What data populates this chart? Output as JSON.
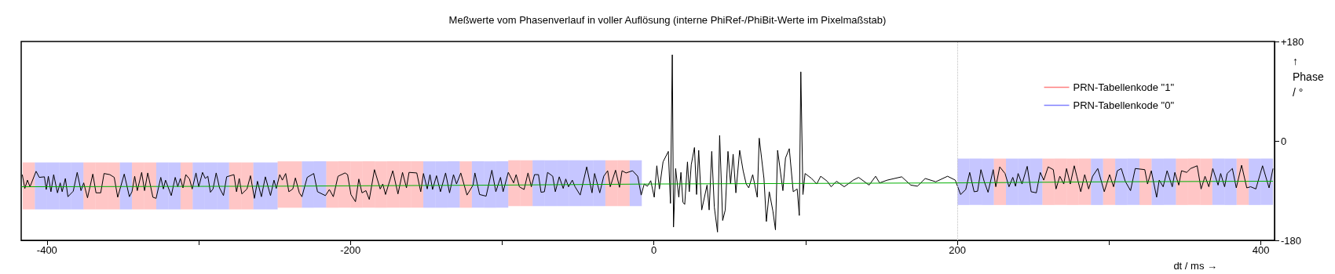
{
  "chart_data": {
    "type": "line",
    "title": "Meßwerte vom Phasenverlauf in voller Auflösung (interne PhiRef-/PhiBit-Werte im Pixelmaßstab)",
    "xlabel": "dt / ms →",
    "ylabel": "↑ Phase / °",
    "xlim": [
      -417,
      409
    ],
    "ylim": [
      -180,
      180
    ],
    "xticks": [
      -400,
      {
        "value": -300,
        "label": null
      },
      -200,
      {
        "value": -100,
        "label": null
      },
      0,
      {
        "value": 100,
        "label": null
      },
      200,
      {
        "value": 300,
        "label": null
      },
      400
    ],
    "yticks": [
      {
        "value": 180,
        "label": "+180"
      },
      0,
      -180
    ],
    "grid": false,
    "legend": "right",
    "marker": "none",
    "line_style": "solid",
    "ref_lines": [
      {
        "axis": "x",
        "value": 200,
        "label": null,
        "color": "#c0c0c0",
        "line_style": "dotted"
      }
    ],
    "series": [
      {
        "name": "PRN-Tabellenkode \"1\"",
        "type": "bar",
        "color": "#ff8080",
        "x": [
          -412,
          -372,
          -364,
          -356,
          -340,
          -332,
          -308,
          -276,
          -268,
          -244,
          -236,
          -212,
          -204,
          -196,
          -188,
          -180,
          -172,
          -164,
          -156,
          -124,
          -92,
          -84,
          -28,
          -20,
          228,
          260,
          268,
          276,
          284,
          300,
          324,
          348,
          356,
          364,
          388
        ],
        "base": [
          -124,
          -124,
          -124,
          -124,
          -124,
          -124,
          -124,
          -124,
          -124,
          -121,
          -121,
          -121,
          -121,
          -121,
          -121,
          -121,
          -121,
          -121,
          -121,
          -121,
          -118,
          -118,
          -118,
          -118,
          -116,
          -116,
          -116,
          -116,
          -116,
          -116,
          -116,
          -116,
          -116,
          -116,
          -116
        ],
        "values": [
          85,
          85,
          85,
          85,
          85,
          85,
          85,
          85,
          85,
          84,
          84,
          84,
          84,
          84,
          84,
          84,
          84,
          84,
          84,
          84,
          83,
          83,
          83,
          83,
          84,
          84,
          84,
          84,
          84,
          84,
          84,
          84,
          84,
          84,
          84
        ]
      },
      {
        "name": "PRN-Tabellenkode \"0\"",
        "type": "bar",
        "color": "#8080ff",
        "x": [
          -404,
          -396,
          -388,
          -380,
          -348,
          -324,
          -316,
          -300,
          -292,
          -284,
          -260,
          -252,
          -228,
          -220,
          -148,
          -140,
          -132,
          -116,
          -108,
          -100,
          -76,
          -68,
          -60,
          -52,
          -44,
          -36,
          -12,
          204,
          212,
          220,
          236,
          244,
          252,
          292,
          308,
          316,
          332,
          340,
          372,
          380,
          396,
          404
        ],
        "base": [
          -124,
          -124,
          -124,
          -124,
          -124,
          -124,
          -124,
          -124,
          -124,
          -124,
          -124,
          -124,
          -121,
          -121,
          -121,
          -121,
          -121,
          -121,
          -121,
          -121,
          -118,
          -118,
          -118,
          -118,
          -118,
          -118,
          -118,
          -116,
          -116,
          -116,
          -116,
          -116,
          -116,
          -116,
          -116,
          -116,
          -116,
          -116,
          -116,
          -116,
          -116,
          -116
        ],
        "values": [
          85,
          85,
          85,
          85,
          85,
          85,
          85,
          85,
          85,
          85,
          85,
          85,
          84,
          84,
          84,
          84,
          84,
          84,
          84,
          84,
          83,
          83,
          83,
          83,
          83,
          83,
          83,
          84,
          84,
          84,
          84,
          84,
          84,
          84,
          84,
          84,
          84,
          84,
          84,
          84,
          84,
          84
        ]
      },
      {
        "color": "#000000",
        "x": [
          -416.3,
          -414.6,
          -412.9,
          -411.2,
          -407.2,
          -405.1,
          -401.7,
          -400.5,
          -399.1,
          -397.4,
          -395.6,
          -393.1,
          -391.3,
          -390.0,
          -387.9,
          -386.2,
          -382.7,
          -380.1,
          -377.6,
          -375.8,
          -373.3,
          -369.8,
          -367.7,
          -364.6,
          -362.4,
          -358.6,
          -355.7,
          -353.4,
          -349.1,
          -345.7,
          -344.0,
          -342.2,
          -340.5,
          -337.6,
          -335.7,
          -333.6,
          -330.2,
          -328.1,
          -325.0,
          -323.3,
          -321.9,
          -318.1,
          -315.5,
          -313.8,
          -312.1,
          -310.4,
          -308.5,
          -306.1,
          -304.3,
          -301.8,
          -300.0,
          -297.5,
          -295.7,
          -294.0,
          -292.3,
          -290.6,
          -288.5,
          -286.3,
          -283.7,
          -281.6,
          -276.8,
          -275.1,
          -273.3,
          -271.6,
          -268.2,
          -265.9,
          -263.3,
          -261.3,
          -258.7,
          -256.1,
          -252.7,
          -250.4,
          -248.9,
          -246.6,
          -244.9,
          -242.7,
          -240.6,
          -238.0,
          -236.3,
          -233.7,
          -232.0,
          -228.5,
          -224.2,
          -221.7,
          -216.5,
          -213.9,
          -211.3,
          -208.2,
          -203.6,
          -201.9,
          -199.7,
          -196.7,
          -194.5,
          -192.4,
          -189.8,
          -187.6,
          -184.2,
          -180.4,
          -178.7,
          -176.9,
          -172.1,
          -168.7,
          -165.7,
          -163.1,
          -161.4,
          -156.3,
          -153.7,
          -151.9,
          -149.4,
          -147.6,
          -145.9,
          -143.3,
          -140.7,
          -137.3,
          -134.7,
          -132.1,
          -130.1,
          -127.3,
          -123.2,
          -119.2,
          -118.0,
          -114.9,
          -110.6,
          -106.8,
          -104.2,
          -101.1,
          -99.4,
          -96.0,
          -92.5,
          -90.8,
          -88.7,
          -85.6,
          -83.0,
          -80.8,
          -78.7,
          -76.1,
          -74.4,
          -72.2,
          -70.1,
          -66.7,
          -65.0,
          -62.4,
          -59.8,
          -58.1,
          -56.3,
          -53.8,
          -52.0,
          -48.6,
          -44.3,
          -40.8,
          -39.1,
          -35.7,
          -33.1,
          -30.5,
          -28.8,
          -25.3,
          -22.7,
          -21.0,
          -18.4,
          -14.1,
          -10.7,
          -8.4,
          -6.4,
          -4.3,
          -2.1,
          0.2,
          1.9,
          3.6,
          6.0,
          9.5,
          10.9,
          12.1,
          12.9,
          14.3,
          16.4,
          17.8,
          19.1,
          20.3,
          22.1,
          23.3,
          24.6,
          26.7,
          28.1,
          29.5,
          31.5,
          35.0,
          36.4,
          38.1,
          39.8,
          41.9,
          43.3,
          45.3,
          47.0,
          48.8,
          50.5,
          52.2,
          54.0,
          56.5,
          58.8,
          60.8,
          62.5,
          65.1,
          68.1,
          69.4,
          72.5,
          74.1,
          76.0,
          78.4,
          80.1,
          81.5,
          85.0,
          86.7,
          89.2,
          91.8,
          94.4,
          95.8,
          96.8,
          98.2,
          99.6,
          103.9,
          107.3,
          109.9,
          114.2,
          116.8,
          120.3,
          125.4,
          131.4,
          134.9,
          141.8,
          146.1,
          148.7,
          153.8,
          163.3,
          169.3,
          173.7,
          178.8,
          185.7,
          193.5,
          198.6,
          202.1,
          205.5,
          208.1,
          211.0,
          213.3,
          215.5,
          217.6,
          220.2,
          223.6,
          225.3,
          227.9,
          231.4,
          234.0,
          236.5,
          238.3,
          240.0,
          242.6,
          246.0,
          248.6,
          252.0,
          254.6,
          256.9,
          259.8,
          263.2,
          265.0,
          267.5,
          270.1,
          271.9,
          274.4,
          277.0,
          278.7,
          281.3,
          283.9,
          286.5,
          289.1,
          292.5,
          296.8,
          300.3,
          302.9,
          305.4,
          308.0,
          310.6,
          314.1,
          317.2,
          323.5,
          325.3,
          327.8,
          331.3,
          333.0,
          335.6,
          338.2,
          341.6,
          343.3,
          345.9,
          347.7,
          351.1,
          353.7,
          358.0,
          360.6,
          363.2,
          365.7,
          368.3,
          371.8,
          373.5,
          376.1,
          377.8,
          381.2,
          383.8,
          387.3,
          390.7,
          393.3,
          396.7,
          401.1,
          405.4,
          408.0
        ],
        "values": [
          -61,
          -86,
          -71,
          -83,
          -55,
          -66,
          -65,
          -88,
          -64,
          -92,
          -61,
          -94,
          -76,
          -92,
          -68,
          -101,
          -91,
          -57,
          -90,
          -76,
          -103,
          -60,
          -94,
          -94,
          -59,
          -61,
          -66,
          -102,
          -60,
          -101,
          -92,
          -64,
          -90,
          -57,
          -90,
          -58,
          -102,
          -104,
          -66,
          -87,
          -71,
          -99,
          -66,
          -83,
          -68,
          -85,
          -61,
          -69,
          -87,
          -58,
          -83,
          -57,
          -68,
          -64,
          -93,
          -87,
          -58,
          -85,
          -99,
          -65,
          -61,
          -92,
          -68,
          -96,
          -87,
          -63,
          -104,
          -73,
          -101,
          -65,
          -99,
          -71,
          -86,
          -61,
          -71,
          -59,
          -92,
          -87,
          -67,
          -94,
          -101,
          -66,
          -59,
          -92,
          -99,
          -88,
          -101,
          -64,
          -58,
          -61,
          -97,
          -110,
          -69,
          -94,
          -90,
          -106,
          -52,
          -87,
          -78,
          -97,
          -54,
          -96,
          -57,
          -85,
          -57,
          -58,
          -92,
          -59,
          -87,
          -61,
          -88,
          -63,
          -92,
          -58,
          -94,
          -61,
          -78,
          -58,
          -98,
          -80,
          -58,
          -97,
          -100,
          -53,
          -92,
          -66,
          -92,
          -57,
          -76,
          -61,
          -83,
          -88,
          -58,
          -83,
          -61,
          -61,
          -93,
          -92,
          -57,
          -64,
          -92,
          -65,
          -86,
          -69,
          -83,
          -71,
          -83,
          -98,
          -47,
          -94,
          -59,
          -94,
          -64,
          -54,
          -83,
          -53,
          -84,
          -54,
          -58,
          -54,
          -64,
          -98,
          -78,
          -82,
          -72,
          -102,
          -45,
          -87,
          -38,
          -19,
          -113,
          156,
          -156,
          -50,
          -102,
          -57,
          -111,
          -115,
          -38,
          -92,
          -43,
          -12,
          -97,
          -17,
          -125,
          -80,
          -125,
          -19,
          -120,
          -165,
          10,
          -144,
          -125,
          -19,
          -78,
          -24,
          -94,
          -17,
          -54,
          -78,
          -85,
          -61,
          -102,
          5,
          -68,
          -146,
          -92,
          -127,
          -161,
          -17,
          -90,
          -31,
          -14,
          -92,
          -87,
          -135,
          125,
          -97,
          -59,
          -68,
          -78,
          -64,
          -73,
          -83,
          -73,
          -83,
          -71,
          -66,
          -80,
          -64,
          -76,
          -71,
          -65,
          -80,
          -82,
          -68,
          -74,
          -64,
          -71,
          -97,
          -88,
          -57,
          -92,
          -91,
          -52,
          -73,
          -93,
          -52,
          -83,
          -47,
          -59,
          -83,
          -66,
          -82,
          -59,
          -78,
          -46,
          -92,
          -94,
          -57,
          -71,
          -47,
          -52,
          -87,
          -64,
          -78,
          -50,
          -78,
          -45,
          -64,
          -92,
          -61,
          -87,
          -64,
          -50,
          -92,
          -61,
          -83,
          -54,
          -50,
          -73,
          -90,
          -50,
          -52,
          -78,
          -54,
          -102,
          -71,
          -83,
          -54,
          -83,
          -57,
          -80,
          -54,
          -57,
          -50,
          -45,
          -87,
          -64,
          -83,
          -50,
          -80,
          -59,
          -83,
          -59,
          -50,
          -85,
          -44,
          -85,
          -83,
          -87,
          -45,
          -85,
          -50
        ]
      },
      {
        "color": "#00b000",
        "x": [
          -417,
          -250,
          -100,
          0,
          100,
          200,
          300,
          408
        ],
        "values": [
          -83,
          -82,
          -80,
          -78,
          -77,
          -76,
          -74,
          -73
        ]
      }
    ]
  }
}
